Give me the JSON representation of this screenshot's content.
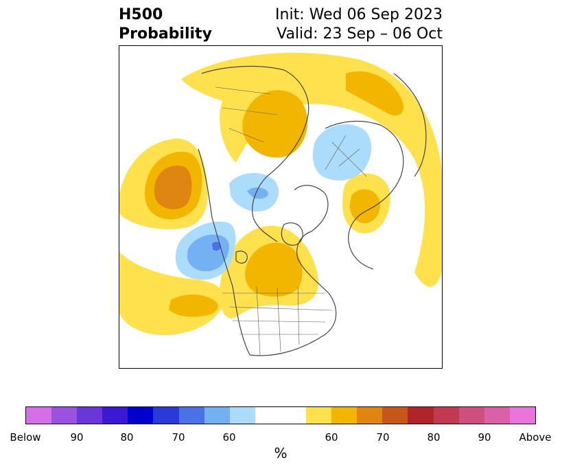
{
  "title": {
    "left_line1": "H500",
    "left_line2": "Probability",
    "right_line1": "Init: Wed 06 Sep 2023",
    "right_line2": "Valid: 23 Sep – 06 Oct"
  },
  "colorbar": {
    "unit": "%",
    "tick_labels": [
      "Below",
      "90",
      "80",
      "70",
      "60",
      "60",
      "70",
      "80",
      "90",
      "Above"
    ],
    "colors": [
      "#d46fe8",
      "#9a53e0",
      "#6b36d9",
      "#3c17d4",
      "#0000cc",
      "#2a3ad8",
      "#4a72e6",
      "#73b1f2",
      "#acdcfb",
      "#ffffff",
      "#ffe14d",
      "#f2b600",
      "#de8611",
      "#c6561a",
      "#b0242a",
      "#c23a52",
      "#cf4f7e",
      "#dc60a8",
      "#e874dc"
    ]
  },
  "map_legend": {
    "below_light": "#acdcfb",
    "below_mid": "#73b1f2",
    "below_dark": "#4a72e6",
    "above_light": "#ffe14d",
    "above_mid": "#f2b600",
    "above_dark": "#de8611"
  }
}
